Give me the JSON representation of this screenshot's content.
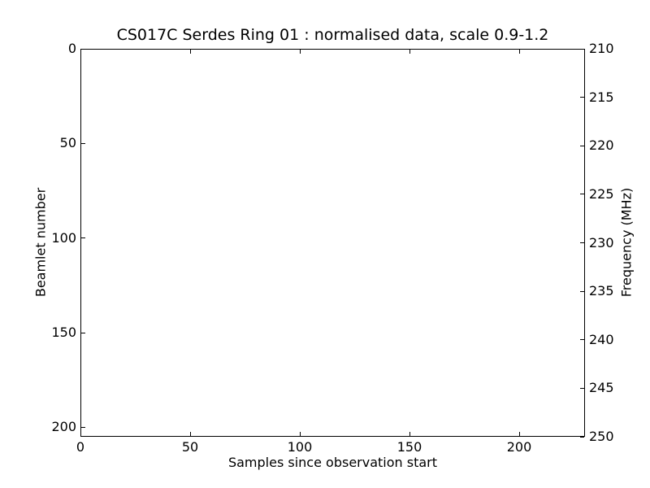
{
  "figure": {
    "background": "#ffffff",
    "foreground": "#000000"
  },
  "chart_data": {
    "type": "heatmap",
    "title": "CS017C Serdes Ring 01 : normalised data, scale 0.9-1.2",
    "xlabel": "Samples since observation start",
    "ylabel_left": "Beamlet number",
    "ylabel_right": "Frequency (MHz)",
    "xlim": [
      0,
      230
    ],
    "ylim_left": [
      0,
      205
    ],
    "ylim_right": [
      210,
      250
    ],
    "y_left_inverted": true,
    "x_ticks": [
      0,
      50,
      100,
      150,
      200
    ],
    "y_left_ticks": [
      0,
      50,
      100,
      150,
      200
    ],
    "y_right_ticks": [
      210,
      215,
      220,
      225,
      230,
      235,
      240,
      245,
      250
    ],
    "grid": false,
    "legend": null,
    "values": []
  }
}
